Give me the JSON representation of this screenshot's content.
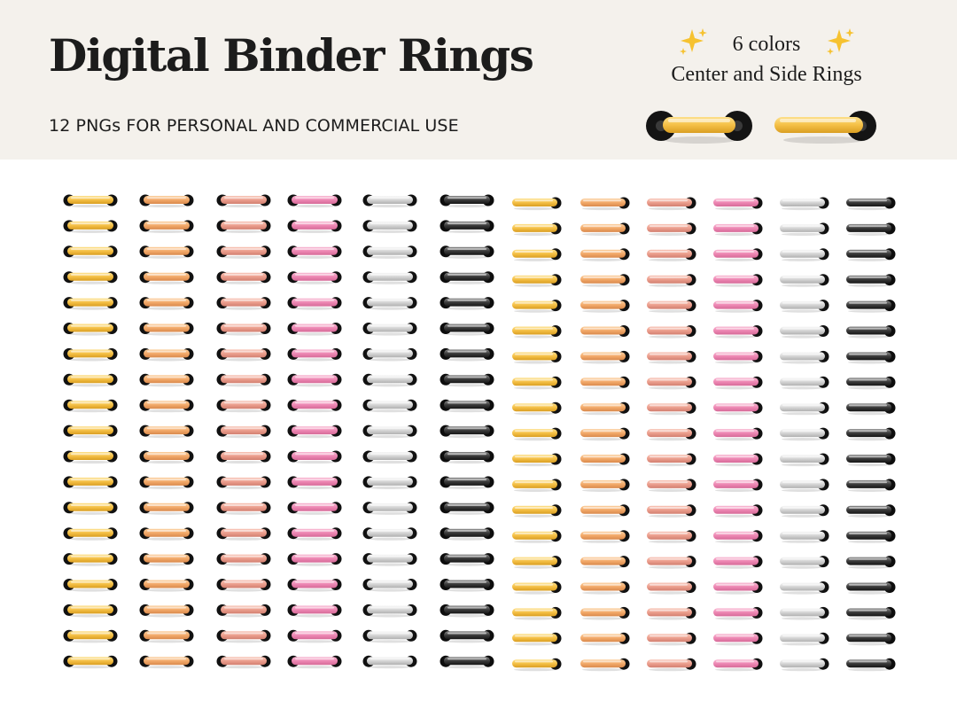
{
  "header": {
    "title": "Digital Binder Rings",
    "subtitle": "12 PNGs FOR PERSONAL AND COMMERCIAL USE",
    "colors_label": "6 colors",
    "rings_label": "Center and Side Rings"
  },
  "icons": [
    "sparkle-icon",
    "center-ring-icon",
    "side-ring-icon"
  ],
  "palette": {
    "gold": {
      "light": "#fde08a",
      "mid": "#f5c046",
      "dark": "#d99e22"
    },
    "peach": {
      "light": "#fbcf9e",
      "mid": "#f3aa6a",
      "dark": "#d9894c"
    },
    "rose-gold": {
      "light": "#f7c3b5",
      "mid": "#ec9f8e",
      "dark": "#d27f70"
    },
    "pink": {
      "light": "#f8b8d2",
      "mid": "#ee88b4",
      "dark": "#d66a98"
    },
    "silver": {
      "light": "#f7f7f7",
      "mid": "#d6d6d6",
      "dark": "#b0b0b0"
    },
    "black": {
      "light": "#8a8a8a",
      "mid": "#3b3b3b",
      "dark": "#161616"
    }
  },
  "columns": [
    {
      "color": "gold",
      "style": "center"
    },
    {
      "color": "peach",
      "style": "center"
    },
    {
      "color": "rose-gold",
      "style": "center"
    },
    {
      "color": "pink",
      "style": "center"
    },
    {
      "color": "silver",
      "style": "center"
    },
    {
      "color": "black",
      "style": "center"
    },
    {
      "color": "gold",
      "style": "side"
    },
    {
      "color": "peach",
      "style": "side"
    },
    {
      "color": "rose-gold",
      "style": "side"
    },
    {
      "color": "pink",
      "style": "side"
    },
    {
      "color": "silver",
      "style": "side"
    },
    {
      "color": "black",
      "style": "side"
    }
  ],
  "rings_per_column": 19
}
